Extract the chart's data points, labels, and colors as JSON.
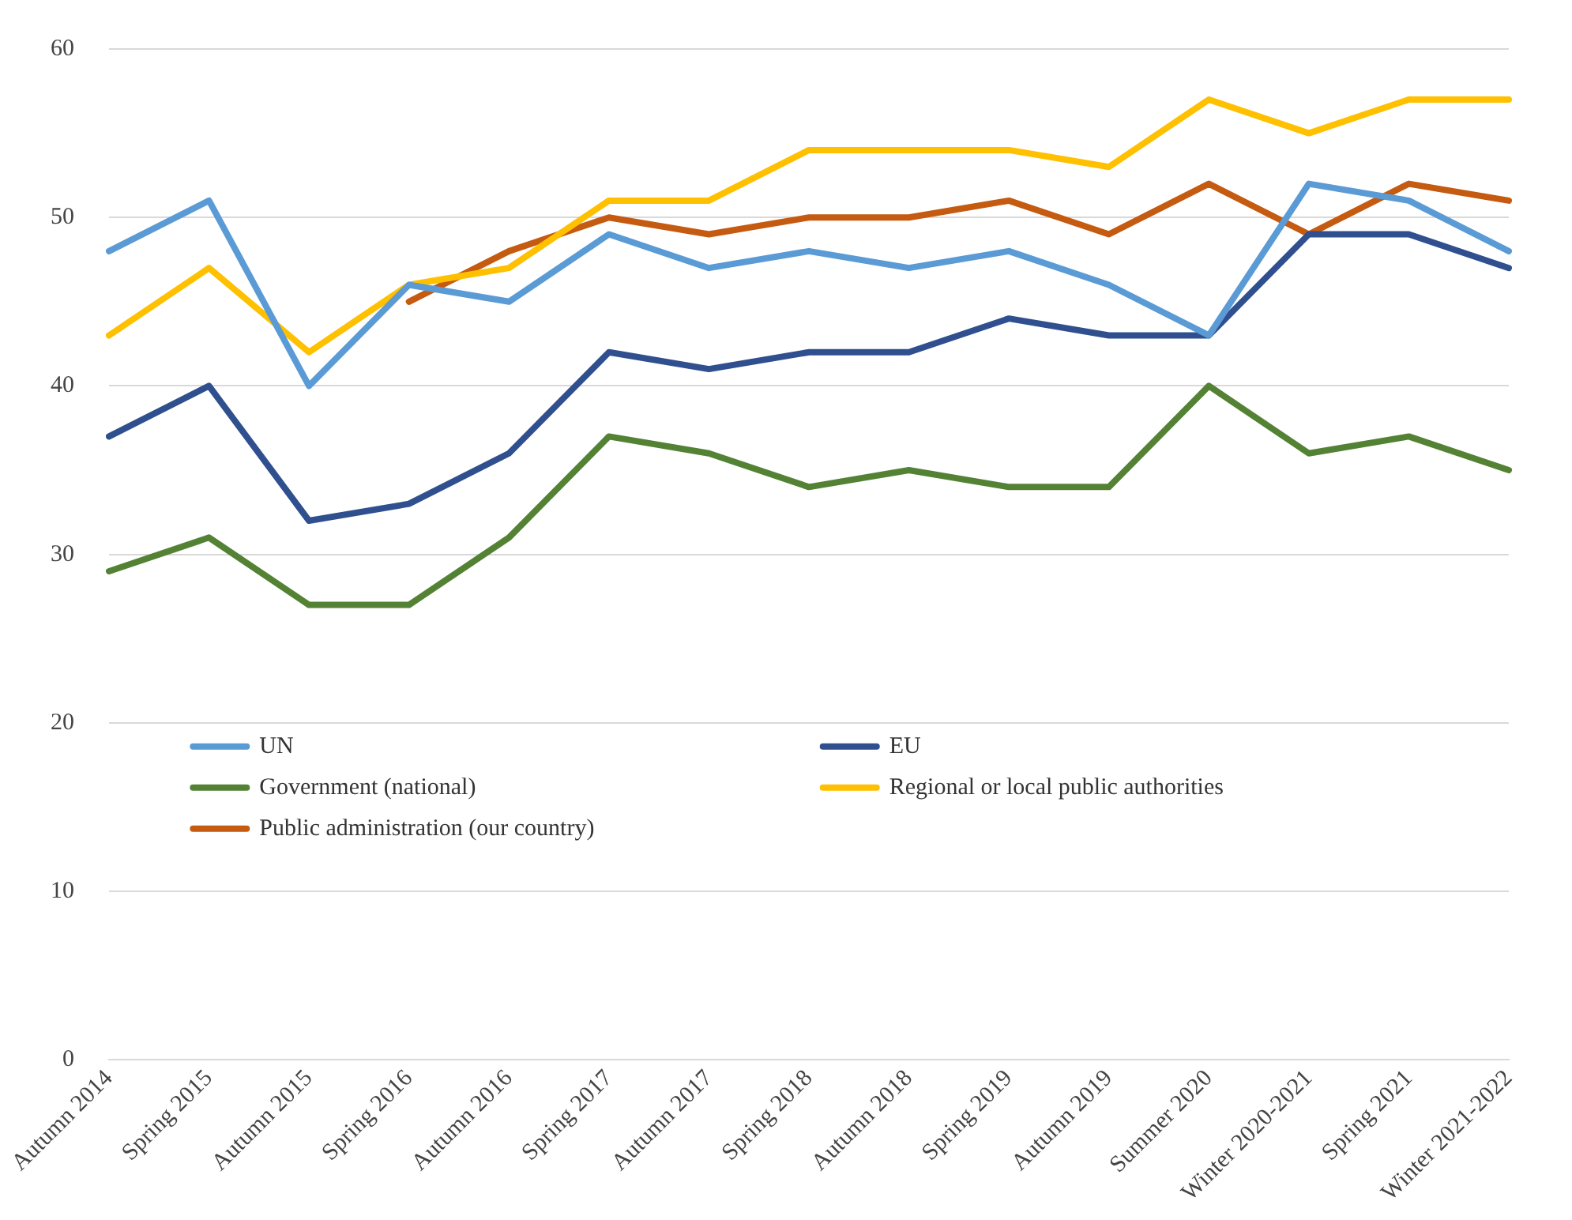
{
  "chart_data": {
    "type": "line",
    "categories": [
      "Autumn 2014",
      "Spring 2015",
      "Autumn 2015",
      "Spring 2016",
      "Autumn 2016",
      "Spring 2017",
      "Autumn 2017",
      "Spring 2018",
      "Autumn 2018",
      "Spring 2019",
      "Autumn 2019",
      "Summer 2020",
      "Winter 2020-2021",
      "Spring 2021",
      "Winter 2021-2022"
    ],
    "series": [
      {
        "name": "UN",
        "color": "#5b9bd5",
        "values": [
          48,
          51,
          40,
          46,
          45,
          49,
          47,
          48,
          47,
          48,
          46,
          43,
          52,
          51,
          48
        ]
      },
      {
        "name": "EU",
        "color": "#2f4f8f",
        "values": [
          37,
          40,
          32,
          33,
          36,
          42,
          41,
          42,
          42,
          44,
          43,
          43,
          49,
          49,
          47
        ]
      },
      {
        "name": "Government (national)",
        "color": "#548235",
        "values": [
          29,
          31,
          27,
          27,
          31,
          37,
          36,
          34,
          35,
          34,
          34,
          40,
          36,
          37,
          35
        ]
      },
      {
        "name": "Regional or local public authorities",
        "color": "#ffc000",
        "values": [
          43,
          47,
          42,
          46,
          47,
          51,
          51,
          54,
          54,
          54,
          53,
          57,
          55,
          57,
          57
        ]
      },
      {
        "name": "Public administration (our country)",
        "color": "#c55a11",
        "values": [
          null,
          null,
          null,
          45,
          48,
          50,
          49,
          50,
          50,
          51,
          49,
          52,
          49,
          52,
          51
        ]
      }
    ],
    "ylim": [
      0,
      60
    ],
    "yticks": [
      0,
      10,
      20,
      30,
      40,
      50,
      60
    ],
    "grid": "y",
    "legend": "bottom",
    "marker": "none",
    "line_style": "solid"
  }
}
